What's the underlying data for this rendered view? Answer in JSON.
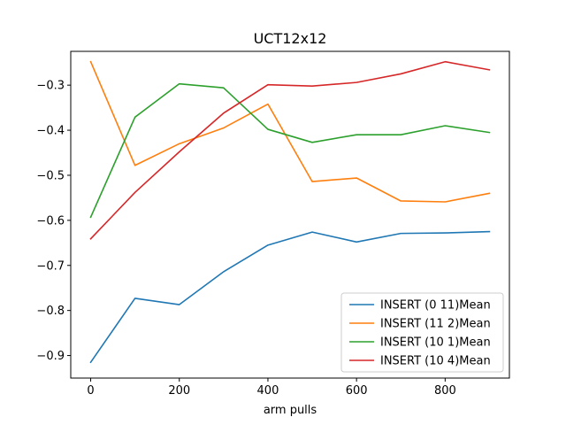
{
  "chart_data": {
    "type": "line",
    "title": "UCT12x12",
    "xlabel": "arm pulls",
    "ylabel": "",
    "xlim": [
      -45,
      945
    ],
    "ylim": [
      -0.95,
      -0.225
    ],
    "x_ticks": [
      0,
      200,
      400,
      600,
      800
    ],
    "y_ticks": [
      -0.9,
      -0.8,
      -0.7,
      -0.6,
      -0.5,
      -0.4,
      -0.3
    ],
    "x_tick_labels": [
      "0",
      "200",
      "400",
      "600",
      "800"
    ],
    "y_tick_labels": [
      "−0.9",
      "−0.8",
      "−0.7",
      "−0.6",
      "−0.5",
      "−0.4",
      "−0.3"
    ],
    "grid": false,
    "legend_position": "lower-right",
    "x": [
      0,
      100,
      200,
      300,
      400,
      500,
      600,
      700,
      800,
      900
    ],
    "series": [
      {
        "name": "INSERT (0 11)Mean",
        "color": "#1f77b4",
        "values": [
          -0.915,
          -0.773,
          -0.787,
          -0.714,
          -0.655,
          -0.626,
          -0.648,
          -0.629,
          -0.628,
          -0.625
        ]
      },
      {
        "name": "INSERT (11 2)Mean",
        "color": "#ff7f0e",
        "values": [
          -0.248,
          -0.478,
          -0.43,
          -0.395,
          -0.342,
          -0.514,
          -0.506,
          -0.557,
          -0.559,
          -0.54
        ]
      },
      {
        "name": "INSERT (10 1)Mean",
        "color": "#2ca02c",
        "values": [
          -0.593,
          -0.371,
          -0.297,
          -0.306,
          -0.398,
          -0.427,
          -0.41,
          -0.41,
          -0.39,
          -0.405
        ]
      },
      {
        "name": "INSERT (10 4)Mean",
        "color": "#d62728",
        "values": [
          -0.641,
          -0.538,
          -0.448,
          -0.362,
          -0.299,
          -0.302,
          -0.294,
          -0.275,
          -0.248,
          -0.266
        ]
      }
    ]
  }
}
